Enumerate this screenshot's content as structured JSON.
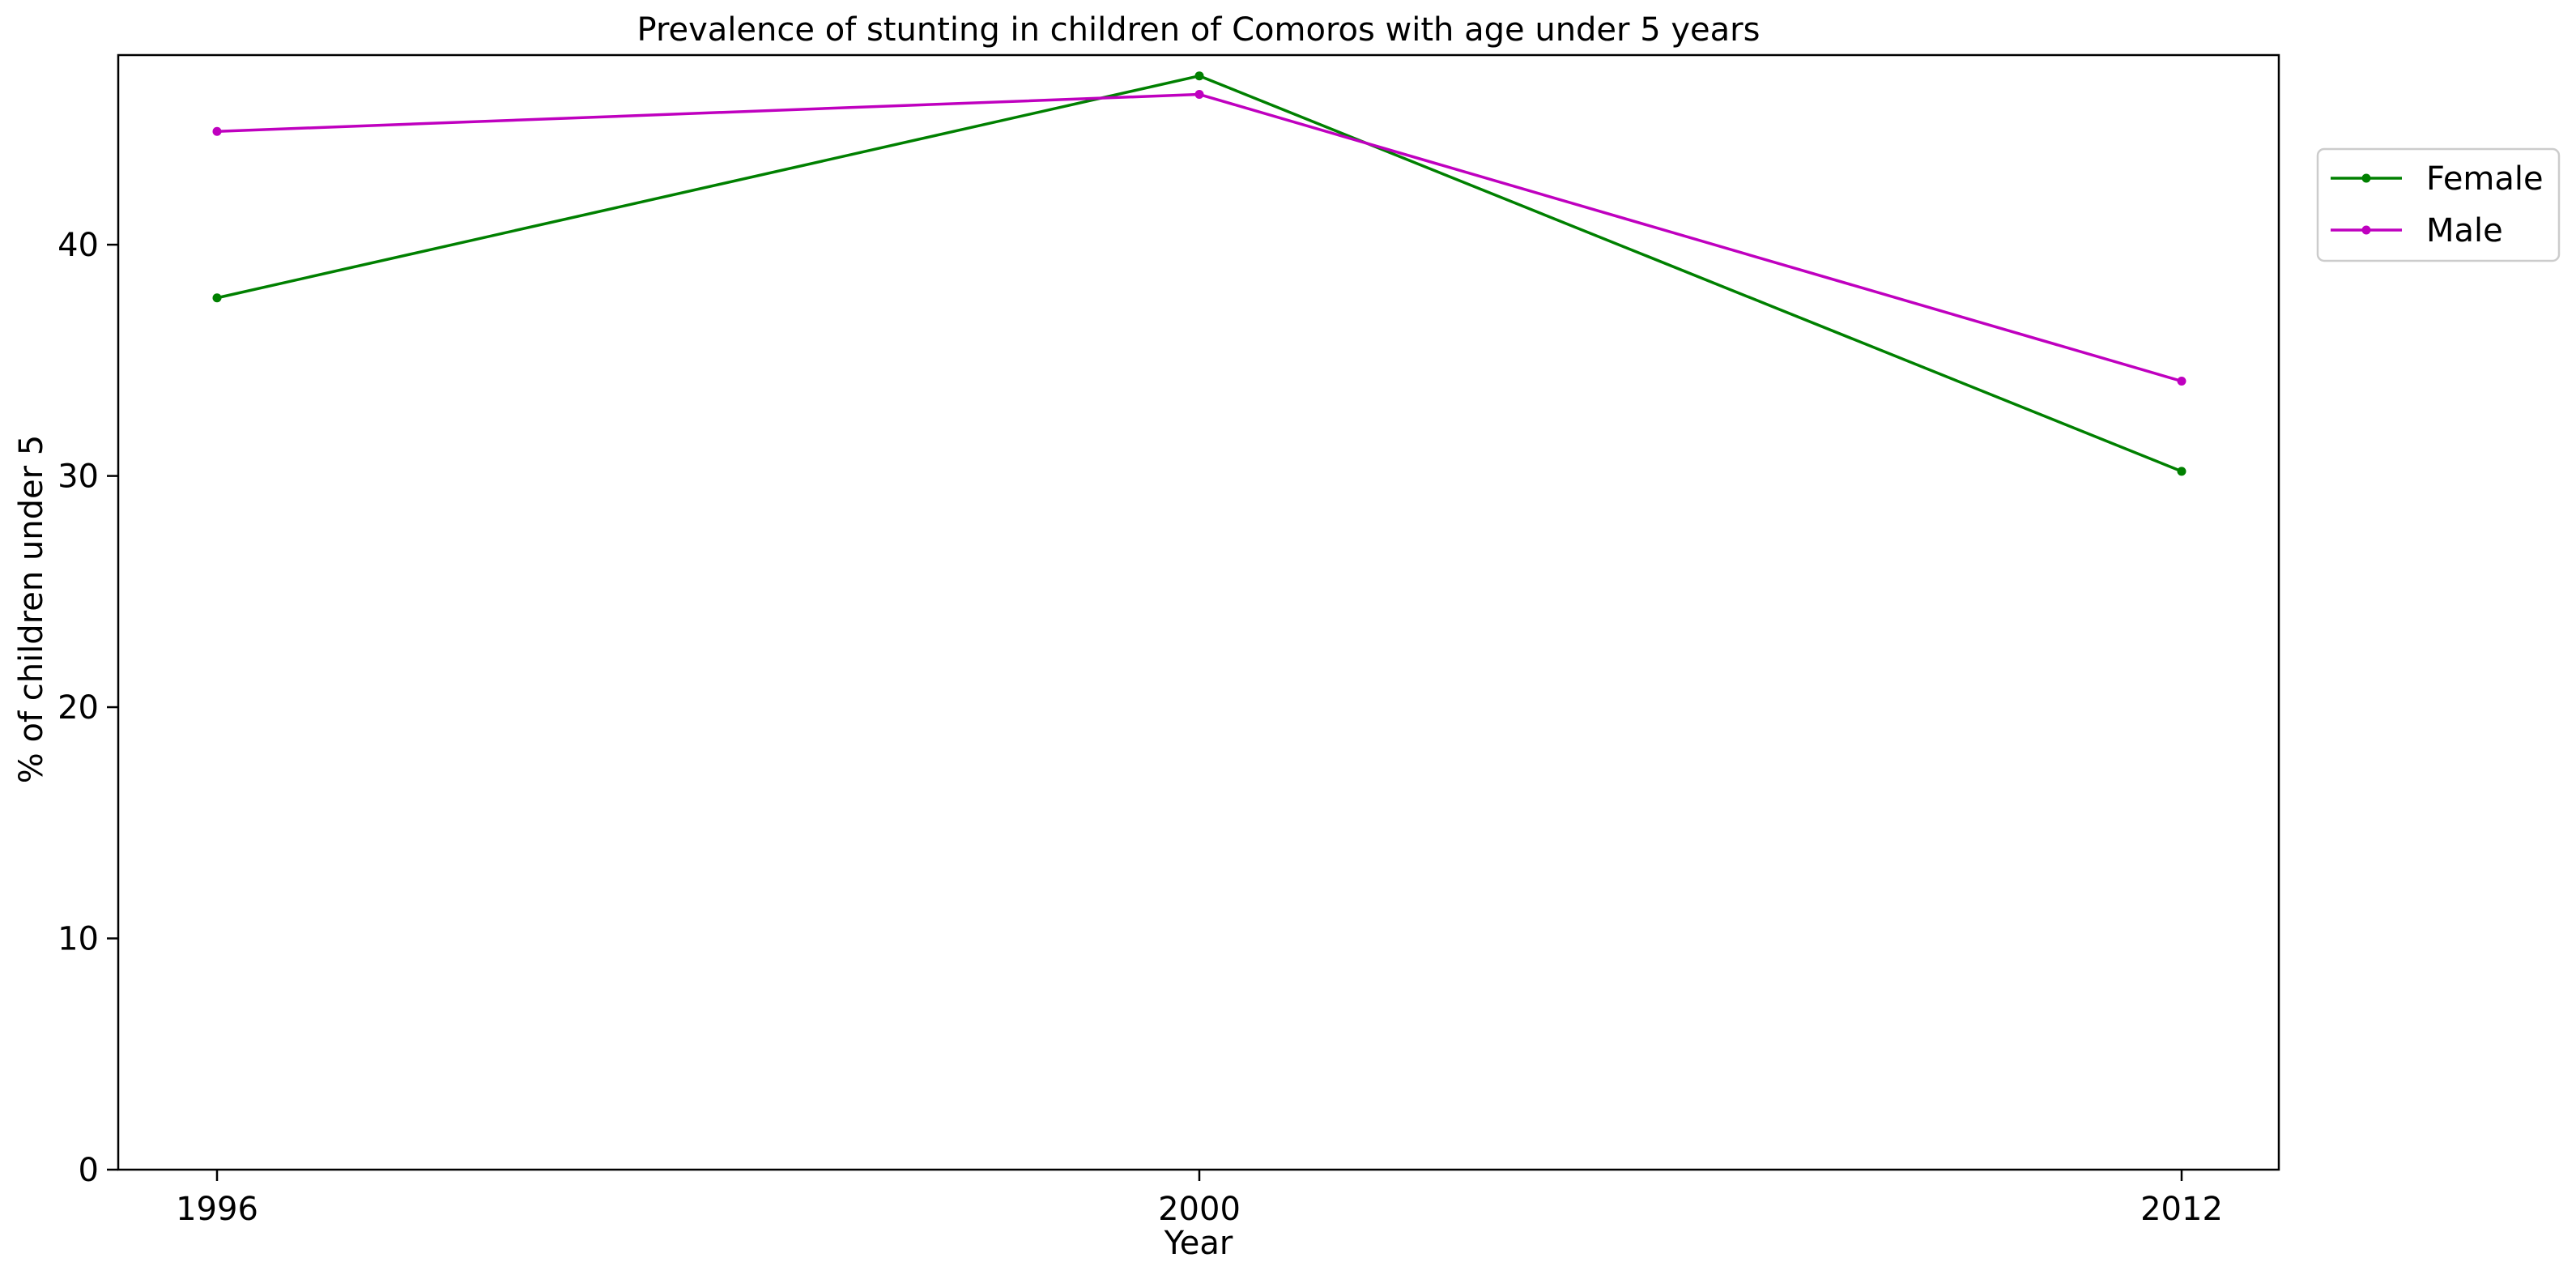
{
  "chart_data": {
    "type": "line",
    "title": "Prevalence of stunting in children of Comoros with age under 5 years",
    "xlabel": "Year",
    "ylabel": "% of children under 5",
    "categories": [
      "1996",
      "2000",
      "2012"
    ],
    "ylim": [
      0,
      48.2
    ],
    "yticks": [
      0,
      10,
      20,
      30,
      40
    ],
    "grid": false,
    "legend_position": "upper-right-outside",
    "series": [
      {
        "name": "Female",
        "color": "#008000",
        "values": [
          37.7,
          47.3,
          30.2
        ]
      },
      {
        "name": "Male",
        "color": "#bf00bf",
        "values": [
          44.9,
          46.5,
          34.1
        ]
      }
    ]
  }
}
